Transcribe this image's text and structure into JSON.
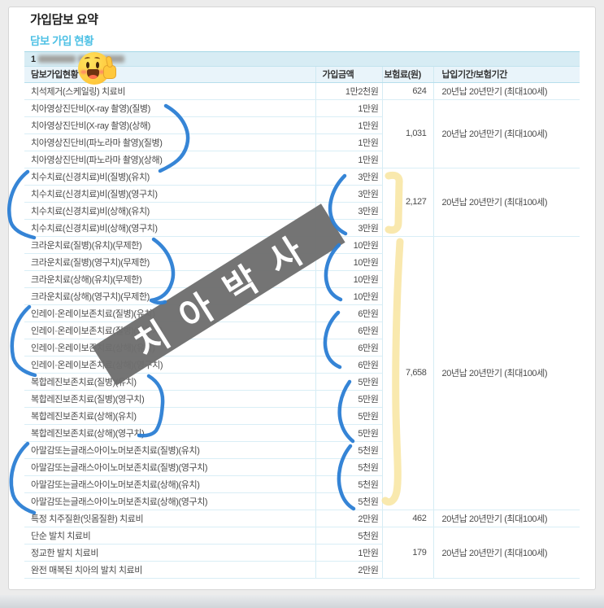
{
  "page": {
    "title": "가입담보 요약",
    "section_title": "담보 가입 현황"
  },
  "product_bar": {
    "visible_prefix": "1",
    "masked": true,
    "masked_note": "blurred-product-name"
  },
  "table": {
    "headers": [
      "담보가입현황",
      "가입금액",
      "보험료(원)",
      "납입기간/보험기간"
    ],
    "rows": [
      {
        "name": "치석제거(스케일링) 치료비",
        "amount": "1만2천원"
      },
      {
        "name": "치아영상진단비(X-ray 촬영)(질병)",
        "amount": "1만원"
      },
      {
        "name": "치아영상진단비(X-ray 촬영)(상해)",
        "amount": "1만원"
      },
      {
        "name": "치아영상진단비(파노라마 촬영)(질병)",
        "amount": "1만원"
      },
      {
        "name": "치아영상진단비(파노라마 촬영)(상해)",
        "amount": "1만원"
      },
      {
        "name": "치수치료(신경치료)비(질병)(유치)",
        "amount": "3만원"
      },
      {
        "name": "치수치료(신경치료)비(질병)(영구치)",
        "amount": "3만원"
      },
      {
        "name": "치수치료(신경치료)비(상해)(유치)",
        "amount": "3만원"
      },
      {
        "name": "치수치료(신경치료)비(상해)(영구치)",
        "amount": "3만원"
      },
      {
        "name": "크라운치료(질병)(유치)(무제한)",
        "amount": "10만원"
      },
      {
        "name": "크라운치료(질병)(영구치)(무제한)",
        "amount": "10만원"
      },
      {
        "name": "크라운치료(상해)(유치)(무제한)",
        "amount": "10만원"
      },
      {
        "name": "크라운치료(상해)(영구치)(무제한)",
        "amount": "10만원"
      },
      {
        "name": "인레이·온레이보존치료(질병)(유치)",
        "amount": "6만원"
      },
      {
        "name": "인레이·온레이보존치료(질병)(영구치)",
        "amount": "6만원"
      },
      {
        "name": "인레이·온레이보존치료(상해)(유치)",
        "amount": "6만원"
      },
      {
        "name": "인레이·온레이보존치료(상해)(영구치)",
        "amount": "6만원"
      },
      {
        "name": "복합레진보존치료(질병)(유치)",
        "amount": "5만원"
      },
      {
        "name": "복합레진보존치료(질병)(영구치)",
        "amount": "5만원"
      },
      {
        "name": "복합레진보존치료(상해)(유치)",
        "amount": "5만원"
      },
      {
        "name": "복합레진보존치료(상해)(영구치)",
        "amount": "5만원"
      },
      {
        "name": "아말감또는글래스아이노머보존치료(질병)(유치)",
        "amount": "5천원"
      },
      {
        "name": "아말감또는글래스아이노머보존치료(질병)(영구치)",
        "amount": "5천원"
      },
      {
        "name": "아말감또는글래스아이노머보존치료(상해)(유치)",
        "amount": "5천원"
      },
      {
        "name": "아말감또는글래스아이노머보존치료(상해)(영구치)",
        "amount": "5천원"
      },
      {
        "name": "특정 치주질환(잇몸질환) 치료비",
        "amount": "2만원"
      },
      {
        "name": "단순 발치 치료비",
        "amount": "5천원"
      },
      {
        "name": "정교한 발치 치료비",
        "amount": "1만원"
      },
      {
        "name": "완전 매복된 치아의 발치 치료비",
        "amount": "2만원"
      }
    ],
    "premium_groups": [
      {
        "start": 0,
        "span": 1,
        "premium": "624",
        "period": "20년납 20년만기 (최대100세)"
      },
      {
        "start": 1,
        "span": 4,
        "premium": "1,031",
        "period": "20년납 20년만기 (최대100세)"
      },
      {
        "start": 5,
        "span": 4,
        "premium": "2,127",
        "period": "20년납 20년만기 (최대100세)"
      },
      {
        "start": 9,
        "span": 16,
        "premium": "7,658",
        "period": "20년납 20년만기 (최대100세)"
      },
      {
        "start": 25,
        "span": 1,
        "premium": "462",
        "period": "20년납 20년만기 (최대100세)"
      },
      {
        "start": 26,
        "span": 3,
        "premium": "179",
        "period": "20년납 20년만기 (최대100세)"
      }
    ]
  },
  "watermark": {
    "text": "치아박사"
  },
  "emoji": {
    "name": "thumbs-up-smiley-emoji"
  },
  "annotations": {
    "pen_color": "#2b7ed4",
    "highlight_color": "#f8e5a0",
    "pen_marks": [
      "pen-paren-xray-rows",
      "pen-paren-left-pulp-rows",
      "pen-paren-amount-pulp-rows",
      "pen-paren-crown-rows",
      "pen-paren-amount-crown-rows",
      "pen-paren-left-inlay-rows",
      "pen-paren-amount-inlay-rows",
      "pen-paren-resin-rows",
      "pen-paren-amount-resin-rows",
      "pen-paren-amount-amalgam-rows",
      "pen-paren-left-amalgam-rows"
    ],
    "highlight_marks": [
      "highlight-bracket-pulp-premium",
      "highlight-bracket-crown-to-amalgam-premium"
    ]
  },
  "colors": {
    "accent_cyan": "#4fc1e5",
    "info_bar_bg": "#d7ecf4",
    "header_bg": "#e9f4fa",
    "row_line": "#d9eef6",
    "table_edge": "#8fd0e0",
    "watermark_gray": "#6e6e6e",
    "page_bg": "#ececec"
  }
}
